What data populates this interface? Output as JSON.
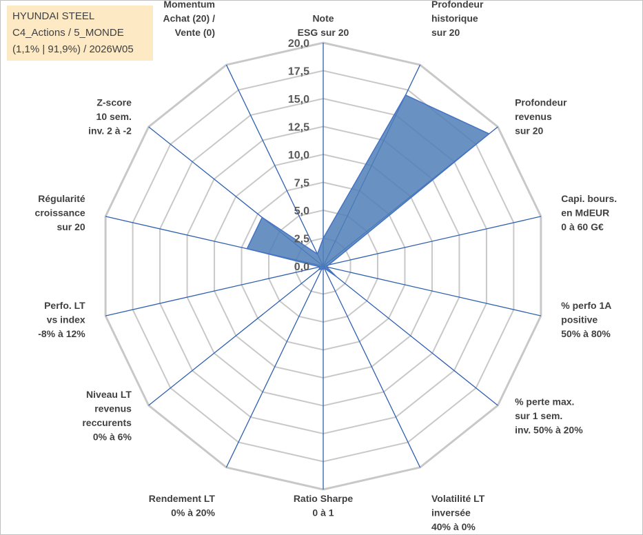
{
  "info_box": {
    "line1": "HYUNDAI STEEL",
    "line2": "C4_Actions / 5_MONDE",
    "line3": "(1,1% | 91,9%) / 2026W05"
  },
  "colors": {
    "series_fill": "#4f7fb8",
    "series_stroke": "#4472c4",
    "spoke": "#2e5fb0",
    "grid": "#c8c8c8",
    "frame": "#bfbfbf",
    "info_bg": "#fde9c4"
  },
  "chart_data": {
    "type": "radar",
    "range": [
      0,
      20
    ],
    "ticks": [
      "0,0",
      "2,5",
      "5,0",
      "7,5",
      "10,0",
      "12,5",
      "15,0",
      "17,5",
      "20,0"
    ],
    "grid": true,
    "categories": [
      [
        "Note",
        "ESG sur 20"
      ],
      [
        "Profondeur",
        "historique",
        "sur 20"
      ],
      [
        "Profondeur",
        "revenus",
        "sur 20"
      ],
      [
        "Capi. bours.",
        "en MdEUR",
        "0 à 60 G€"
      ],
      [
        "% perfo 1A",
        "positive",
        "50% à 80%"
      ],
      [
        "% perte max.",
        "sur 1 sem.",
        "inv. 50% à 20%"
      ],
      [
        "Volatilité LT",
        "inversée",
        "40% à 0%"
      ],
      [
        "Ratio Sharpe",
        "0 à 1"
      ],
      [
        "Rendement LT",
        "0% à 20%"
      ],
      [
        "Niveau LT",
        "revenus",
        "reccurents",
        "0% à 6%"
      ],
      [
        "Perfo. LT",
        "vs index",
        "-8% à 12%"
      ],
      [
        "Régularité",
        "croissance",
        "sur 20"
      ],
      [
        "Z-score",
        "10 sem.",
        "inv. 2 à -2"
      ],
      [
        "Momentum",
        "Achat (20) /",
        "Vente (0)"
      ]
    ],
    "series": [
      {
        "values": [
          2.5,
          17.0,
          19.0,
          0.5,
          0.3,
          1.5,
          0.2,
          0.3,
          0.3,
          0.5,
          0.3,
          7.0,
          7.0,
          1.2
        ]
      }
    ]
  }
}
